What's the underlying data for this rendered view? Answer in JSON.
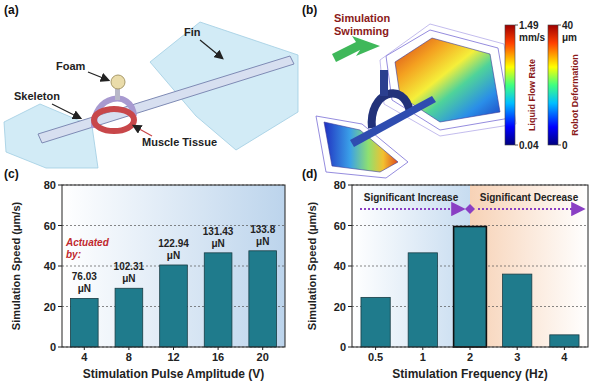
{
  "diagram": {
    "title": "(a)",
    "labels": {
      "foam": "Foam",
      "fin": "Fin",
      "skeleton": "Skeleton",
      "muscle": "Muscle Tissue"
    }
  },
  "simulation": {
    "title": "(b)",
    "caption": "Simulation Swimming",
    "colorbars": [
      {
        "label": "Liquid Flow Rate",
        "unit": "mm/s",
        "range": [
          0.04,
          1.49
        ],
        "ticks": [
          0.04,
          1.49
        ]
      },
      {
        "label": "Robot Deformation",
        "unit": "μm",
        "range": [
          0,
          40
        ],
        "ticks": [
          0,
          40
        ]
      }
    ]
  },
  "chart_data": [
    {
      "type": "bar",
      "title": "(c)",
      "x_label": "Stimulation Pulse Amplitude (V)",
      "y_label": "Simulation Speed (μm/s)",
      "categories": [
        "4",
        "8",
        "12",
        "16",
        "20"
      ],
      "values": [
        24,
        29,
        40.5,
        46.5,
        47.5
      ],
      "color": "#1f7b8c",
      "ylim": [
        0,
        80
      ],
      "yticks": [
        0,
        20,
        40,
        60,
        80
      ],
      "grid": true,
      "annotations": [
        "Actuated by:"
      ],
      "force_labels": [
        "76.03 μN",
        "102.31 μN",
        "122.94 μN",
        "131.43 μN",
        "133.8 μN"
      ]
    },
    {
      "type": "bar",
      "title": "(d)",
      "x_label": "Stimulation Frequency (Hz)",
      "y_label": "Simulation Speed (μm/s)",
      "categories": [
        "0.5",
        "1",
        "2",
        "3",
        "4"
      ],
      "values": [
        24.5,
        46.5,
        59.5,
        36,
        6
      ],
      "color": "#1f7b8c",
      "ylim": [
        0,
        80
      ],
      "yticks": [
        0,
        20,
        40,
        60,
        80
      ],
      "grid": true,
      "annotations": [
        "Significant Increase",
        "Significant Decrease"
      ]
    }
  ]
}
